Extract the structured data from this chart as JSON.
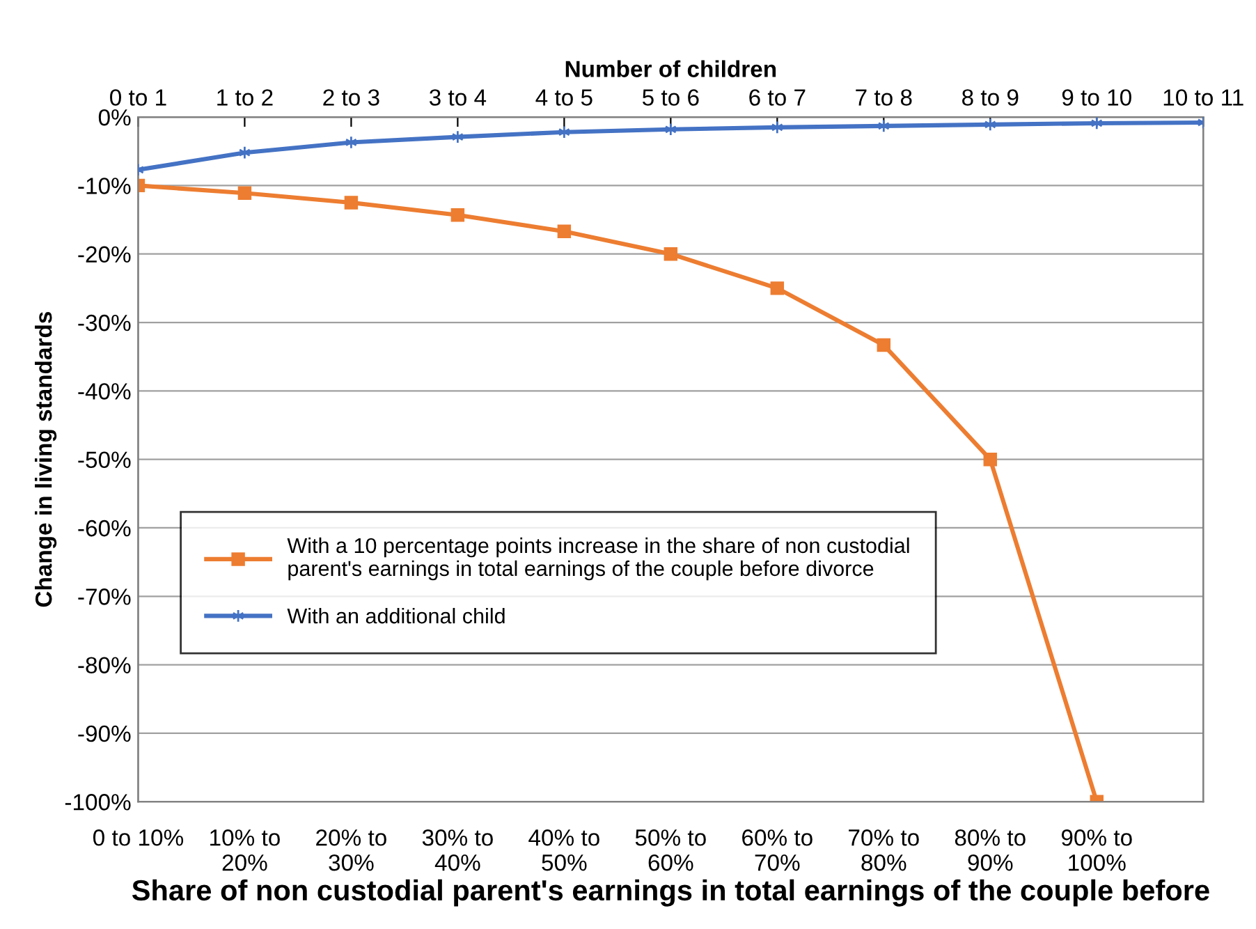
{
  "chart_data": [
    {
      "type": "line",
      "xlabel": "Share of non custodial parent's earnings in total earnings of the couple before",
      "ylabel": "Change in living standards",
      "categories": [
        "0 to 10%",
        "10% to\n20%",
        "20% to\n30%",
        "30% to\n40%",
        "40% to\n50%",
        "50% to\n60%",
        "60% to\n70%",
        "70% to\n80%",
        "80% to\n90%",
        "90% to\n100%",
        null
      ],
      "series": [
        {
          "name": "With a 10 percentage points increase in the share of non custodial\nparent's earnings in total earnings of the couple before divorce",
          "color": "#ed7d31",
          "marker": "square",
          "values": [
            -10,
            -11.1,
            -12.5,
            -14.3,
            -16.7,
            -20,
            -25,
            -33.3,
            -50,
            -100,
            null
          ]
        }
      ],
      "ylim": [
        -100,
        0
      ],
      "yticks": [
        {
          "value": 0,
          "label": "0%"
        },
        {
          "value": -10,
          "label": "-10%"
        },
        {
          "value": -20,
          "label": "-20%"
        },
        {
          "value": -30,
          "label": "-30%"
        },
        {
          "value": -40,
          "label": "-40%"
        },
        {
          "value": -50,
          "label": "-50%"
        },
        {
          "value": -60,
          "label": "-60%"
        },
        {
          "value": -70,
          "label": "-70%"
        },
        {
          "value": -80,
          "label": "-80%"
        },
        {
          "value": -90,
          "label": "-90%"
        },
        {
          "value": -100,
          "label": "-100%"
        }
      ],
      "grid": "y",
      "legend": "left",
      "line_style": "solid"
    },
    {
      "type": "line",
      "xlabel": "Number of children",
      "categories": [
        "0 to 1",
        "1 to 2",
        "2 to 3",
        "3 to 4",
        "4 to 5",
        "5 to 6",
        "6 to 7",
        "7 to 8",
        "8 to 9",
        "9 to 10",
        "10 to 11"
      ],
      "series": [
        {
          "name": "With an additional child",
          "color": "#4472c4",
          "marker": "cross",
          "values": [
            -7.7,
            -5.2,
            -3.7,
            -2.9,
            -2.2,
            -1.8,
            -1.5,
            -1.3,
            -1.1,
            -0.9,
            -0.8
          ]
        }
      ],
      "ylim": [
        -100,
        0
      ],
      "tick_labels": "x",
      "line_style": "solid"
    }
  ]
}
